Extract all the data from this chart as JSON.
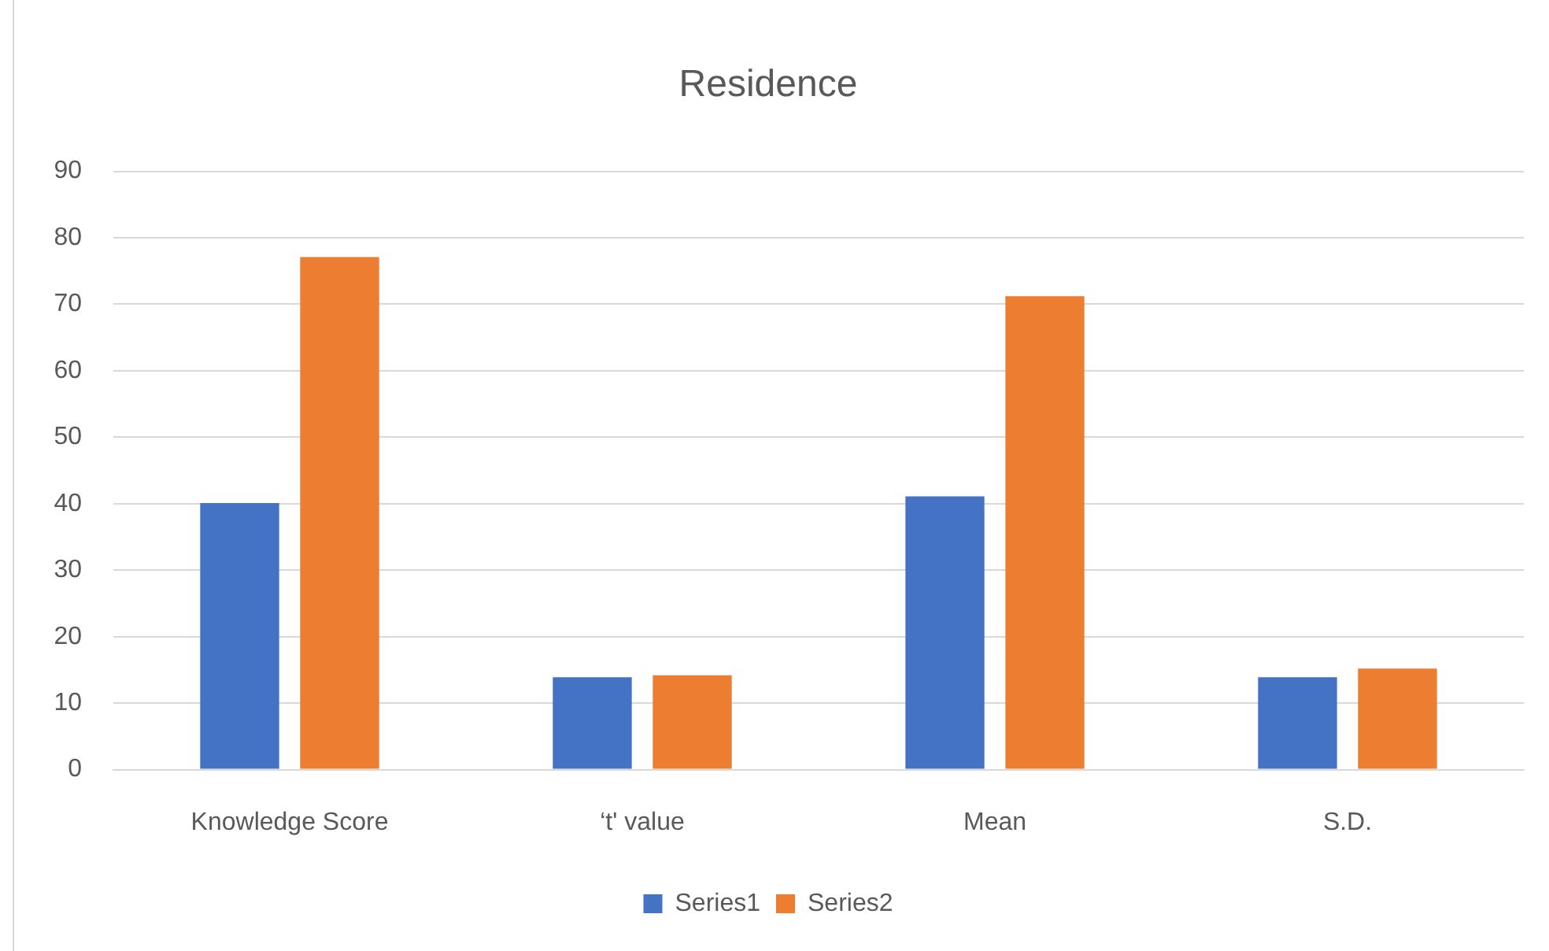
{
  "chart_data": {
    "type": "bar",
    "title": "Residence",
    "categories": [
      "Knowledge Score",
      "‘t' value",
      "Mean",
      "S.D."
    ],
    "series": [
      {
        "name": "Series1",
        "color": "#4472c4",
        "values": [
          40.1,
          13.9,
          41.1,
          13.9
        ]
      },
      {
        "name": "Series2",
        "color": "#ed7d31",
        "values": [
          77.1,
          14.2,
          71.2,
          15.2
        ]
      }
    ],
    "ylim": [
      0,
      90
    ],
    "yticks": [
      0,
      10,
      20,
      30,
      40,
      50,
      60,
      70,
      80,
      90
    ],
    "grid": "y",
    "legend": "bottom"
  }
}
